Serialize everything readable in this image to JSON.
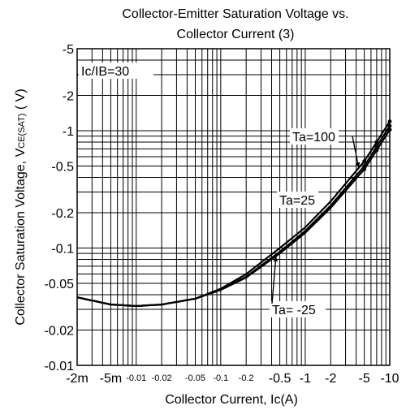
{
  "chart_data": {
    "type": "line",
    "title_line1": "Collector-Emitter Saturation Voltage vs.",
    "title_line2": "Collector Current (3)",
    "xlabel": "Collector Current, Ic(A)",
    "ylabel_main": "Collector  Saturation Voltage, V",
    "ylabel_sub": "CE(SAT)",
    "ylabel_unit": " ( V)",
    "x_scale": "log",
    "y_scale": "log",
    "xlim": [
      0.002,
      10
    ],
    "ylim": [
      0.01,
      5
    ],
    "grid": true,
    "y_ticks": [
      {
        "value": 5,
        "label": "-5"
      },
      {
        "value": 2,
        "label": "-2"
      },
      {
        "value": 1,
        "label": "-1"
      },
      {
        "value": 0.5,
        "label": "-0.5"
      },
      {
        "value": 0.2,
        "label": "-0.2"
      },
      {
        "value": 0.1,
        "label": "-0.1"
      },
      {
        "value": 0.05,
        "label": "-0.05"
      },
      {
        "value": 0.02,
        "label": "-0.02"
      },
      {
        "value": 0.01,
        "label": "-0.01"
      }
    ],
    "x_ticks": [
      {
        "value": 0.002,
        "label": "-2m",
        "size": "big"
      },
      {
        "value": 0.005,
        "label": "-5m",
        "size": "big"
      },
      {
        "value": 0.01,
        "label": "-0.01",
        "size": "small"
      },
      {
        "value": 0.02,
        "label": "-0.02",
        "size": "small"
      },
      {
        "value": 0.05,
        "label": "-0.05",
        "size": "small"
      },
      {
        "value": 0.1,
        "label": "-0.1",
        "size": "small"
      },
      {
        "value": 0.2,
        "label": "-0.2",
        "size": "small"
      },
      {
        "value": 0.5,
        "label": "-0.5",
        "size": "big"
      },
      {
        "value": 1,
        "label": "-1",
        "size": "big"
      },
      {
        "value": 2,
        "label": "-2",
        "size": "big"
      },
      {
        "value": 5,
        "label": "-5",
        "size": "big"
      },
      {
        "value": 10,
        "label": "-10",
        "size": "big"
      }
    ],
    "condition_label": "Ic/IB=30",
    "series": [
      {
        "name": "Ta=100",
        "x": [
          0.002,
          0.005,
          0.01,
          0.02,
          0.05,
          0.1,
          0.2,
          0.5,
          1,
          2,
          5,
          7,
          10
        ],
        "y": [
          0.038,
          0.033,
          0.032,
          0.033,
          0.037,
          0.045,
          0.06,
          0.1,
          0.15,
          0.25,
          0.55,
          0.8,
          1.2
        ]
      },
      {
        "name": "Ta=25",
        "x": [
          0.002,
          0.005,
          0.01,
          0.02,
          0.05,
          0.1,
          0.2,
          0.5,
          1,
          2,
          5,
          7,
          10
        ],
        "y": [
          0.038,
          0.033,
          0.032,
          0.033,
          0.037,
          0.044,
          0.057,
          0.093,
          0.14,
          0.23,
          0.5,
          0.73,
          1.1
        ]
      },
      {
        "name": "Ta= -25",
        "x": [
          0.002,
          0.005,
          0.01,
          0.02,
          0.05,
          0.1,
          0.2,
          0.5,
          1,
          2,
          5,
          7,
          10
        ],
        "y": [
          0.038,
          0.033,
          0.032,
          0.033,
          0.037,
          0.044,
          0.056,
          0.09,
          0.135,
          0.22,
          0.47,
          0.68,
          1.02
        ]
      }
    ]
  }
}
